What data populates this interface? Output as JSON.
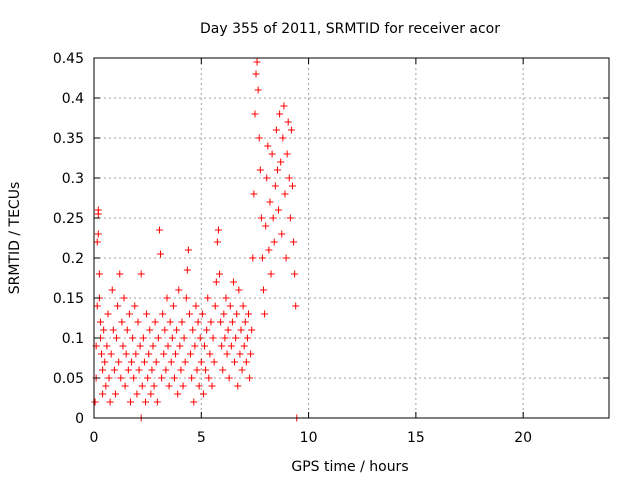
{
  "chart_data": {
    "type": "scatter",
    "title": "Day 355 of 2011, SRMTID for receiver acor",
    "xlabel": "GPS time / hours",
    "ylabel": "SRMTID / TECUs",
    "xlim": [
      0,
      24
    ],
    "ylim": [
      0,
      0.45
    ],
    "xticks": [
      0,
      5,
      10,
      15,
      20
    ],
    "xtick_labels": [
      "0",
      "5",
      "10",
      "15",
      "20"
    ],
    "yticks": [
      0,
      0.05,
      0.1,
      0.15,
      0.2,
      0.25,
      0.3,
      0.35,
      0.4,
      0.45
    ],
    "ytick_labels": [
      "0",
      "0.05",
      "0.1",
      "0.15",
      "0.2",
      "0.25",
      "0.3",
      "0.35",
      "0.4",
      "0.45"
    ],
    "grid": true,
    "marker": "plus",
    "color": "#ff0000",
    "series": [
      {
        "name": "SRMTID",
        "points": [
          [
            0.05,
            0.02
          ],
          [
            0.1,
            0.05
          ],
          [
            0.1,
            0.09
          ],
          [
            0.15,
            0.14
          ],
          [
            0.15,
            0.22
          ],
          [
            0.2,
            0.23
          ],
          [
            0.2,
            0.255
          ],
          [
            0.2,
            0.26
          ],
          [
            0.25,
            0.18
          ],
          [
            0.25,
            0.15
          ],
          [
            0.3,
            0.12
          ],
          [
            0.3,
            0.1
          ],
          [
            0.35,
            0.08
          ],
          [
            0.4,
            0.06
          ],
          [
            0.4,
            0.03
          ],
          [
            0.45,
            0.11
          ],
          [
            0.5,
            0.07
          ],
          [
            0.55,
            0.04
          ],
          [
            0.6,
            0.09
          ],
          [
            0.65,
            0.13
          ],
          [
            0.7,
            0.05
          ],
          [
            0.75,
            0.02
          ],
          [
            0.8,
            0.08
          ],
          [
            0.85,
            0.16
          ],
          [
            0.9,
            0.11
          ],
          [
            0.95,
            0.06
          ],
          [
            1.0,
            0.03
          ],
          [
            1.05,
            0.1
          ],
          [
            1.1,
            0.14
          ],
          [
            1.15,
            0.07
          ],
          [
            1.2,
            0.18
          ],
          [
            1.25,
            0.05
          ],
          [
            1.3,
            0.12
          ],
          [
            1.35,
            0.09
          ],
          [
            1.4,
            0.15
          ],
          [
            1.45,
            0.04
          ],
          [
            1.5,
            0.08
          ],
          [
            1.55,
            0.11
          ],
          [
            1.6,
            0.06
          ],
          [
            1.65,
            0.13
          ],
          [
            1.7,
            0.02
          ],
          [
            1.75,
            0.07
          ],
          [
            1.8,
            0.1
          ],
          [
            1.85,
            0.05
          ],
          [
            1.9,
            0.14
          ],
          [
            1.95,
            0.08
          ],
          [
            2.0,
            0.03
          ],
          [
            2.05,
            0.12
          ],
          [
            2.1,
            0.06
          ],
          [
            2.15,
            0.09
          ],
          [
            2.2,
            0.18
          ],
          [
            2.25,
            0.04
          ],
          [
            2.3,
            0.1
          ],
          [
            2.35,
            0.07
          ],
          [
            2.4,
            0.02
          ],
          [
            2.45,
            0.13
          ],
          [
            2.5,
            0.05
          ],
          [
            2.55,
            0.08
          ],
          [
            2.6,
            0.11
          ],
          [
            2.65,
            0.03
          ],
          [
            2.7,
            0.06
          ],
          [
            2.75,
            0.09
          ],
          [
            2.8,
            0.04
          ],
          [
            2.85,
            0.12
          ],
          [
            2.9,
            0.07
          ],
          [
            2.95,
            0.02
          ],
          [
            3.0,
            0.1
          ],
          [
            3.05,
            0.235
          ],
          [
            3.1,
            0.205
          ],
          [
            3.15,
            0.05
          ],
          [
            3.2,
            0.13
          ],
          [
            3.25,
            0.08
          ],
          [
            3.3,
            0.11
          ],
          [
            3.35,
            0.06
          ],
          [
            3.4,
            0.15
          ],
          [
            3.45,
            0.09
          ],
          [
            3.5,
            0.04
          ],
          [
            3.55,
            0.12
          ],
          [
            3.6,
            0.07
          ],
          [
            3.65,
            0.1
          ],
          [
            3.7,
            0.14
          ],
          [
            3.75,
            0.05
          ],
          [
            3.8,
            0.08
          ],
          [
            3.85,
            0.11
          ],
          [
            3.9,
            0.03
          ],
          [
            3.95,
            0.16
          ],
          [
            4.0,
            0.09
          ],
          [
            4.05,
            0.06
          ],
          [
            4.1,
            0.12
          ],
          [
            4.15,
            0.04
          ],
          [
            4.2,
            0.1
          ],
          [
            4.25,
            0.07
          ],
          [
            4.3,
            0.15
          ],
          [
            4.35,
            0.185
          ],
          [
            4.4,
            0.21
          ],
          [
            4.45,
            0.13
          ],
          [
            4.5,
            0.08
          ],
          [
            4.55,
            0.05
          ],
          [
            4.6,
            0.11
          ],
          [
            4.65,
            0.02
          ],
          [
            4.7,
            0.09
          ],
          [
            4.75,
            0.14
          ],
          [
            4.8,
            0.06
          ],
          [
            4.85,
            0.12
          ],
          [
            4.9,
            0.04
          ],
          [
            4.95,
            0.1
          ],
          [
            5.0,
            0.07
          ],
          [
            5.05,
            0.13
          ],
          [
            5.1,
            0.03
          ],
          [
            5.15,
            0.09
          ],
          [
            5.2,
            0.06
          ],
          [
            5.25,
            0.11
          ],
          [
            5.3,
            0.15
          ],
          [
            5.35,
            0.05
          ],
          [
            5.4,
            0.08
          ],
          [
            5.45,
            0.12
          ],
          [
            5.5,
            0.04
          ],
          [
            5.55,
            0.1
          ],
          [
            5.6,
            0.07
          ],
          [
            5.65,
            0.14
          ],
          [
            5.7,
            0.17
          ],
          [
            5.75,
            0.22
          ],
          [
            5.8,
            0.235
          ],
          [
            5.85,
            0.18
          ],
          [
            5.9,
            0.12
          ],
          [
            5.95,
            0.09
          ],
          [
            6.0,
            0.06
          ],
          [
            6.05,
            0.13
          ],
          [
            6.1,
            0.1
          ],
          [
            6.15,
            0.15
          ],
          [
            6.2,
            0.08
          ],
          [
            6.25,
            0.11
          ],
          [
            6.3,
            0.05
          ],
          [
            6.35,
            0.14
          ],
          [
            6.4,
            0.09
          ],
          [
            6.45,
            0.12
          ],
          [
            6.5,
            0.17
          ],
          [
            6.55,
            0.07
          ],
          [
            6.6,
            0.1
          ],
          [
            6.65,
            0.13
          ],
          [
            6.7,
            0.04
          ],
          [
            6.75,
            0.16
          ],
          [
            6.8,
            0.08
          ],
          [
            6.85,
            0.11
          ],
          [
            6.9,
            0.06
          ],
          [
            6.95,
            0.14
          ],
          [
            7.0,
            0.09
          ],
          [
            7.05,
            0.12
          ],
          [
            7.1,
            0.07
          ],
          [
            7.15,
            0.1
          ],
          [
            7.2,
            0.13
          ],
          [
            7.25,
            0.05
          ],
          [
            7.3,
            0.08
          ],
          [
            7.35,
            0.11
          ],
          [
            7.4,
            0.2
          ],
          [
            7.45,
            0.28
          ],
          [
            7.5,
            0.38
          ],
          [
            7.55,
            0.43
          ],
          [
            7.6,
            0.445
          ],
          [
            7.65,
            0.41
          ],
          [
            7.7,
            0.35
          ],
          [
            7.75,
            0.31
          ],
          [
            7.8,
            0.25
          ],
          [
            7.85,
            0.2
          ],
          [
            7.9,
            0.16
          ],
          [
            7.95,
            0.13
          ],
          [
            8.0,
            0.24
          ],
          [
            8.05,
            0.3
          ],
          [
            8.1,
            0.34
          ],
          [
            8.15,
            0.21
          ],
          [
            8.2,
            0.27
          ],
          [
            8.25,
            0.18
          ],
          [
            8.3,
            0.33
          ],
          [
            8.35,
            0.25
          ],
          [
            8.4,
            0.22
          ],
          [
            8.45,
            0.29
          ],
          [
            8.5,
            0.36
          ],
          [
            8.55,
            0.31
          ],
          [
            8.6,
            0.26
          ],
          [
            8.65,
            0.38
          ],
          [
            8.7,
            0.32
          ],
          [
            8.75,
            0.23
          ],
          [
            8.8,
            0.35
          ],
          [
            8.85,
            0.39
          ],
          [
            8.9,
            0.28
          ],
          [
            8.95,
            0.2
          ],
          [
            9.0,
            0.33
          ],
          [
            9.05,
            0.37
          ],
          [
            9.1,
            0.3
          ],
          [
            9.15,
            0.25
          ],
          [
            9.2,
            0.36
          ],
          [
            9.25,
            0.29
          ],
          [
            9.3,
            0.22
          ],
          [
            9.35,
            0.18
          ],
          [
            9.4,
            0.14
          ],
          [
            2.2,
            0.0
          ],
          [
            9.45,
            0.0
          ]
        ]
      }
    ]
  }
}
